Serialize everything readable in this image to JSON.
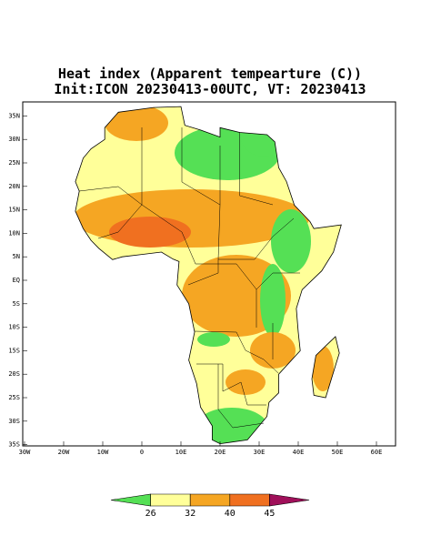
{
  "header": {
    "title": "Heat index (Apparent tempearture (C))",
    "subtitle": "Init:ICON 20230413-00UTC, VT: 20230413"
  },
  "map": {
    "lat_ticks": [
      {
        "value": 35,
        "label": "35N"
      },
      {
        "value": 30,
        "label": "30N"
      },
      {
        "value": 25,
        "label": "25N"
      },
      {
        "value": 20,
        "label": "20N"
      },
      {
        "value": 15,
        "label": "15N"
      },
      {
        "value": 10,
        "label": "10N"
      },
      {
        "value": 5,
        "label": "5N"
      },
      {
        "value": 0,
        "label": "EQ"
      },
      {
        "value": -5,
        "label": "5S"
      },
      {
        "value": -10,
        "label": "10S"
      },
      {
        "value": -15,
        "label": "15S"
      },
      {
        "value": -20,
        "label": "20S"
      },
      {
        "value": -25,
        "label": "25S"
      },
      {
        "value": -30,
        "label": "30S"
      },
      {
        "value": -35,
        "label": "35S"
      }
    ],
    "lon_ticks": [
      {
        "value": -30,
        "label": "30W"
      },
      {
        "value": -20,
        "label": "20W"
      },
      {
        "value": -10,
        "label": "10W"
      },
      0,
      {
        "value": 10,
        "label": "10E"
      },
      {
        "value": 20,
        "label": "20E"
      },
      {
        "value": 30,
        "label": "30E"
      },
      {
        "value": 40,
        "label": "40E"
      },
      {
        "value": 50,
        "label": "50E"
      },
      {
        "value": 60,
        "label": "60E"
      }
    ]
  },
  "colorbar": {
    "levels": [
      26,
      32,
      40,
      45
    ],
    "colors": [
      "#55e055",
      "#ffff99",
      "#f5a623",
      "#f07020",
      "#a0105a"
    ]
  }
}
